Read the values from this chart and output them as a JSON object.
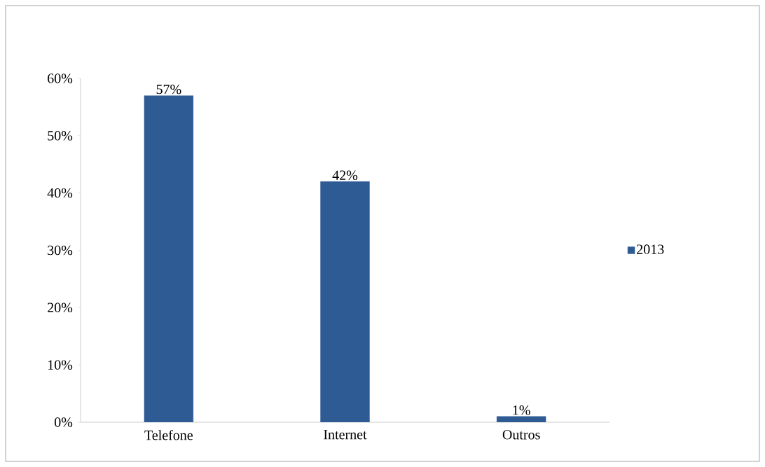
{
  "chart_data": {
    "type": "bar",
    "categories": [
      "Telefone",
      "Internet",
      "Outros"
    ],
    "series": [
      {
        "name": "2013",
        "color": "#2f5b95",
        "values": [
          57,
          42,
          1
        ],
        "value_labels": [
          "57%",
          "42%",
          "1%"
        ]
      }
    ],
    "ylim": [
      0,
      60
    ],
    "yticks": [
      {
        "value": 0,
        "label": "0%"
      },
      {
        "value": 10,
        "label": "10%"
      },
      {
        "value": 20,
        "label": "20%"
      },
      {
        "value": 30,
        "label": "30%"
      },
      {
        "value": 40,
        "label": "40%"
      },
      {
        "value": 50,
        "label": "50%"
      },
      {
        "value": 60,
        "label": "60%"
      }
    ],
    "grid": false,
    "legend": "right"
  }
}
